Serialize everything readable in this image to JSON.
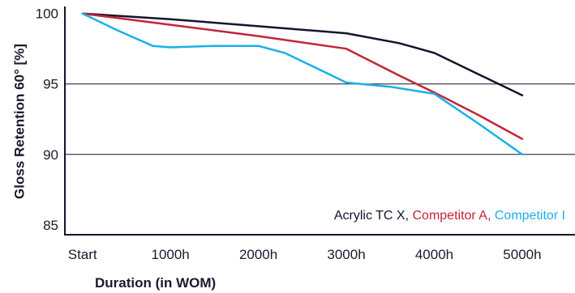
{
  "chart_data": {
    "type": "line",
    "title": "",
    "xlabel": "Duration (in WOM)",
    "ylabel": "Gloss Retention 60° [%]",
    "categories": [
      "Start",
      "1000h",
      "2000h",
      "3000h",
      "4000h",
      "5000h"
    ],
    "x_positions": [
      0,
      1000,
      2000,
      3000,
      4000,
      5000
    ],
    "yticks": [
      100,
      95,
      90,
      85
    ],
    "ylim": [
      84.3,
      100.5
    ],
    "xlim": [
      -200,
      5600
    ],
    "grid": {
      "horizontal_lines_at": [
        95,
        90
      ]
    },
    "legend_placement": "bottom-right",
    "legend_separator": ", ",
    "series": [
      {
        "name": "Acrylic TC X",
        "color": "#14142b",
        "points": [
          [
            0,
            100.0
          ],
          [
            1000,
            99.6
          ],
          [
            2000,
            99.1
          ],
          [
            3000,
            98.6
          ],
          [
            3600,
            97.9
          ],
          [
            4000,
            97.2
          ],
          [
            4500,
            95.7
          ],
          [
            5000,
            94.2
          ]
        ]
      },
      {
        "name": "Competitor A",
        "color": "#c4243a",
        "points": [
          [
            0,
            100.0
          ],
          [
            1000,
            99.2
          ],
          [
            2000,
            98.4
          ],
          [
            3000,
            97.5
          ],
          [
            3600,
            95.6
          ],
          [
            4000,
            94.4
          ],
          [
            4500,
            92.8
          ],
          [
            5000,
            91.1
          ]
        ]
      },
      {
        "name": "Competitor I",
        "color": "#1ab0e8",
        "points": [
          [
            0,
            100.0
          ],
          [
            400,
            98.8
          ],
          [
            800,
            97.7
          ],
          [
            1000,
            97.6
          ],
          [
            1500,
            97.7
          ],
          [
            2000,
            97.7
          ],
          [
            2300,
            97.2
          ],
          [
            2700,
            96.0
          ],
          [
            3000,
            95.1
          ],
          [
            3500,
            94.8
          ],
          [
            4000,
            94.3
          ],
          [
            4500,
            92.2
          ],
          [
            5000,
            90.0
          ]
        ]
      }
    ]
  }
}
